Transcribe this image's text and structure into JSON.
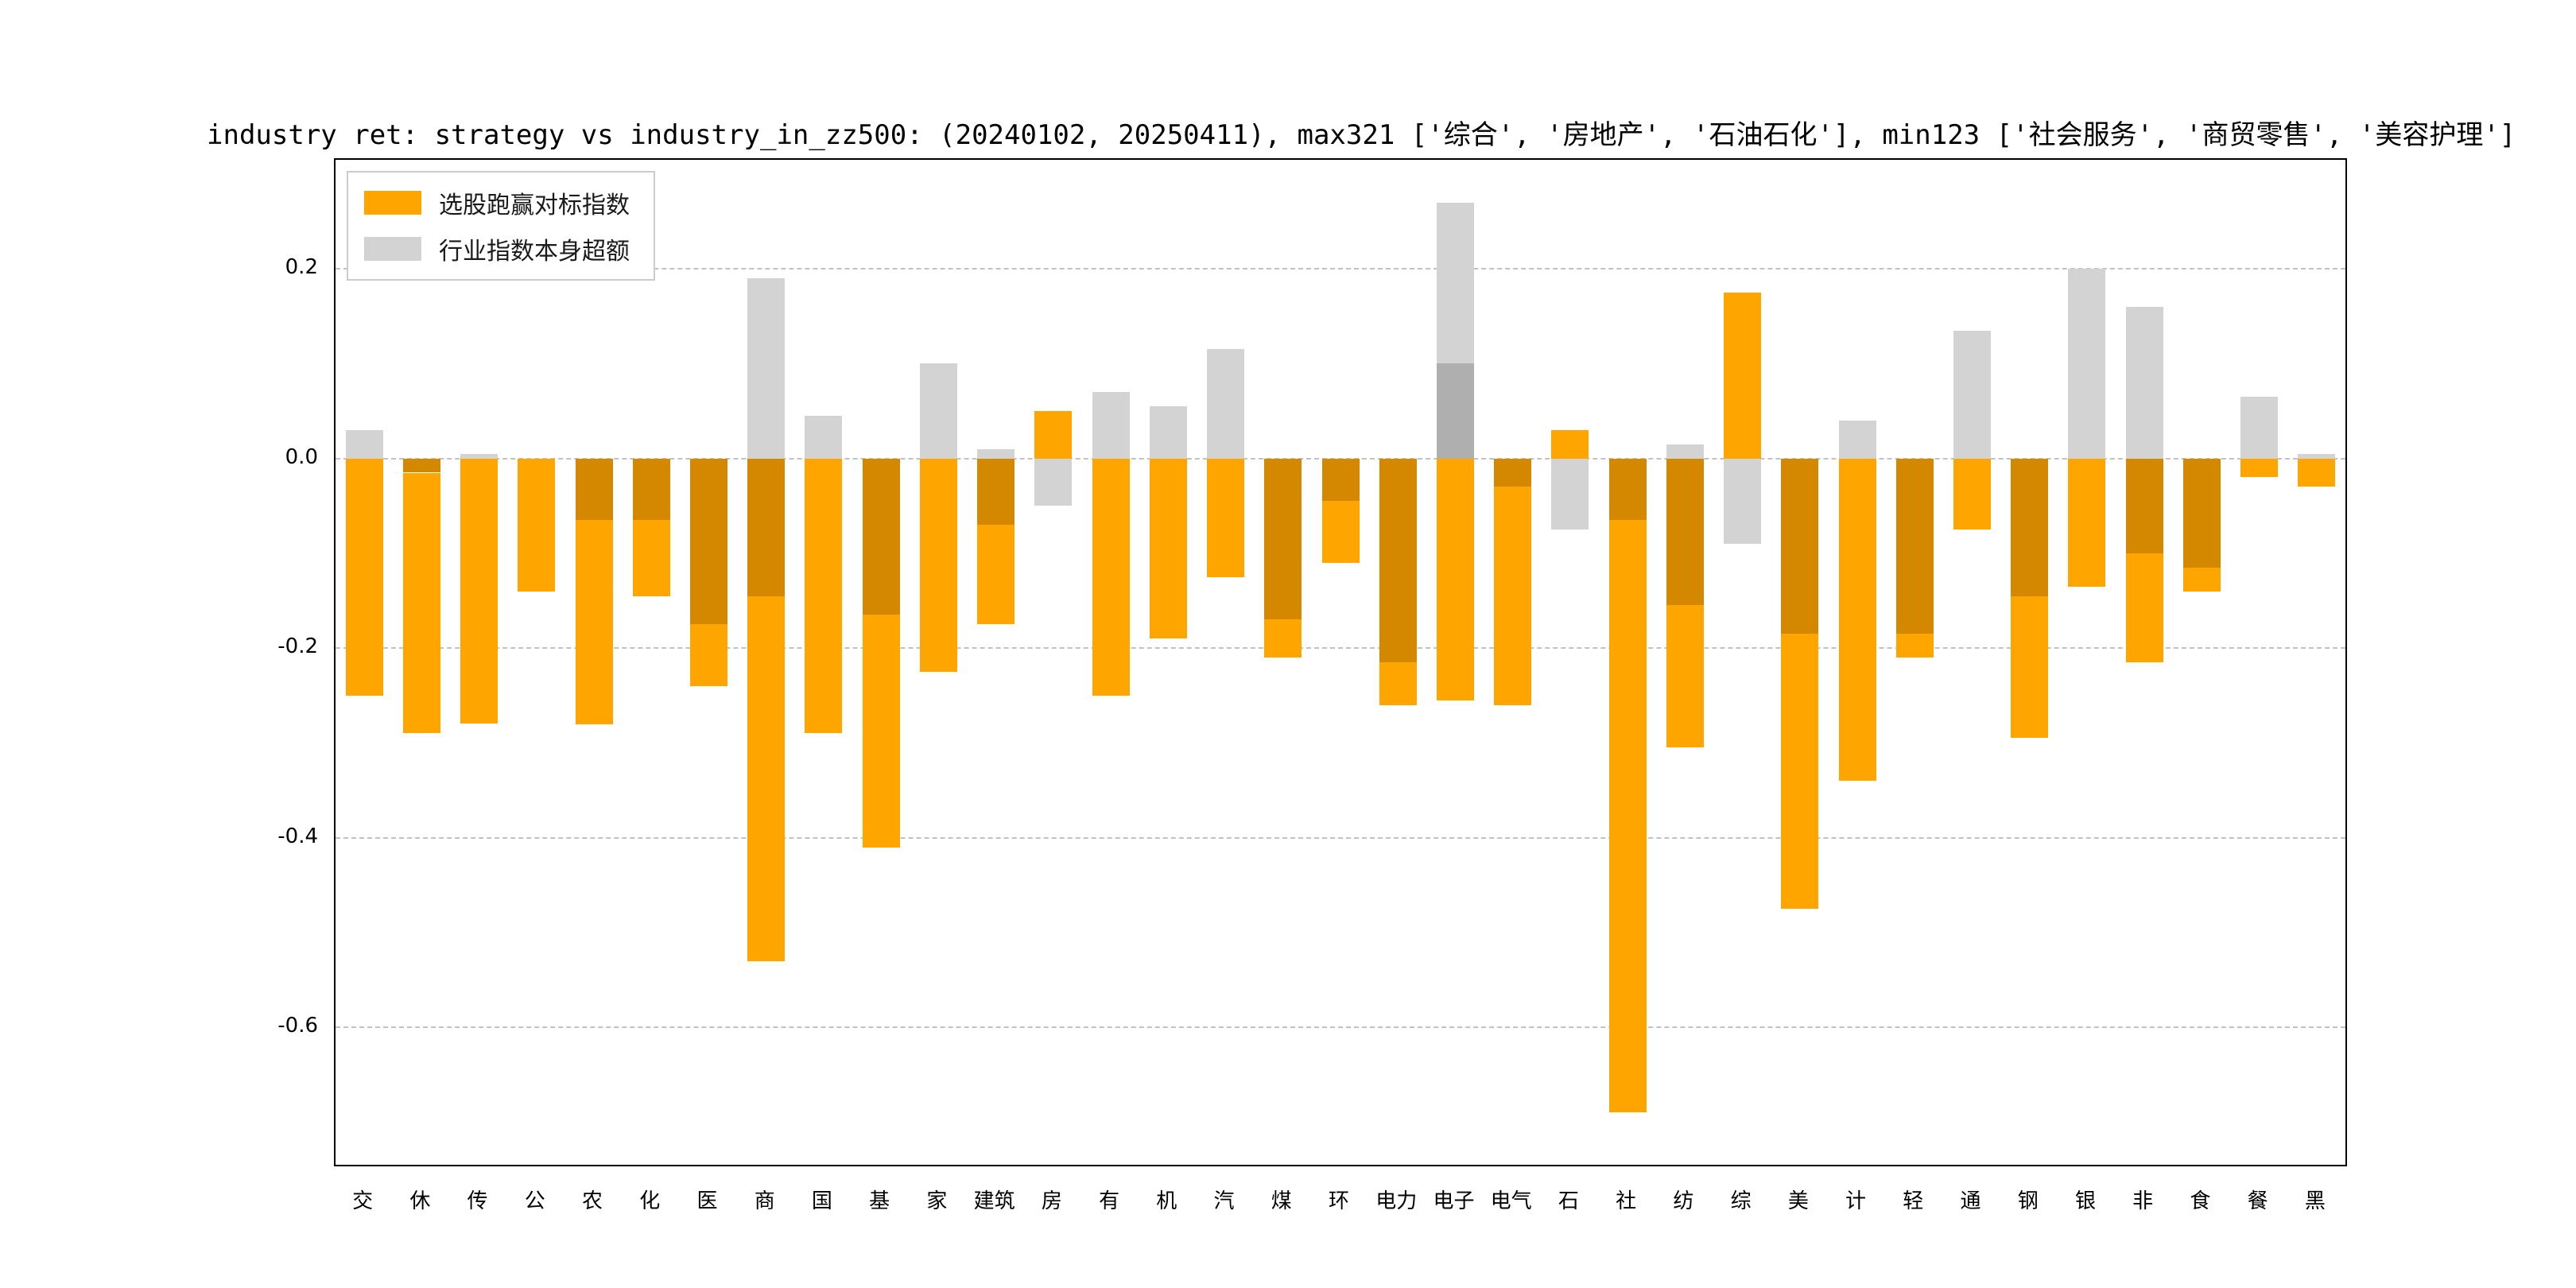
{
  "figure": {
    "title": "industry ret: strategy vs industry_in_zz500: (20240102, 20250411), max321 ['综合', '房地产', '石油石化'], min123 ['社会服务', '商贸零售', '美容护理']"
  },
  "legend": {
    "items": [
      {
        "label": "选股跑赢对标指数",
        "color": "#FFA500"
      },
      {
        "label": "行业指数本身超额",
        "color": "#D3D3D3"
      }
    ]
  },
  "chart_data": {
    "type": "bar",
    "title": "industry ret: strategy vs industry_in_zz500: (20240102, 20250411), max321 ['综合', '房地产', '石油石化'], min123 ['社会服务', '商贸零售', '美容护理']",
    "ylim": [
      -0.745,
      0.315
    ],
    "yticks": [
      {
        "label": "0.2",
        "value": 0.2
      },
      {
        "label": "0.0",
        "value": 0.0
      },
      {
        "label": "-0.2",
        "value": -0.2
      },
      {
        "label": "-0.4",
        "value": -0.4
      },
      {
        "label": "-0.6",
        "value": -0.6
      }
    ],
    "grid": {
      "horizontal": true,
      "style": "dashed"
    },
    "legend_position": "upper-left",
    "series_names": [
      "选股跑赢对标指数",
      "行业指数本身超额"
    ],
    "colors": {
      "orange": "#FFA500",
      "gray": "#D3D3D3",
      "overlap": "#D38800",
      "gray_dark": "#AFAFAF"
    },
    "bars": [
      {
        "label": "交",
        "orange": -0.25,
        "gray": [
          0,
          0.03
        ]
      },
      {
        "label": "休",
        "orange": -0.29,
        "gray": [
          -0.015,
          0
        ]
      },
      {
        "label": "传",
        "orange": -0.28,
        "gray": [
          0,
          0.005
        ]
      },
      {
        "label": "公",
        "orange": -0.14,
        "gray": [
          0,
          0
        ]
      },
      {
        "label": "农",
        "orange": -0.28,
        "gray": [
          -0.065,
          0
        ]
      },
      {
        "label": "化",
        "orange": -0.145,
        "gray": [
          -0.065,
          0
        ]
      },
      {
        "label": "医",
        "orange": -0.24,
        "gray": [
          -0.175,
          0
        ]
      },
      {
        "label": "商",
        "orange": -0.53,
        "gray": [
          -0.145,
          0.19
        ]
      },
      {
        "label": "国",
        "orange": -0.29,
        "gray": [
          0,
          0.045
        ]
      },
      {
        "label": "基",
        "orange": -0.41,
        "gray": [
          -0.165,
          0
        ]
      },
      {
        "label": "家",
        "orange": -0.225,
        "gray": [
          0,
          0.1
        ]
      },
      {
        "label": "建筑",
        "orange": -0.175,
        "gray": [
          -0.07,
          0.01
        ]
      },
      {
        "label": "房",
        "orange": 0.05,
        "gray": [
          -0.05,
          0
        ]
      },
      {
        "label": "有",
        "orange": -0.25,
        "gray": [
          0,
          0.07
        ]
      },
      {
        "label": "机",
        "orange": -0.19,
        "gray": [
          0,
          0.055
        ]
      },
      {
        "label": "汽",
        "orange": -0.125,
        "gray": [
          0,
          0.115
        ]
      },
      {
        "label": "煤",
        "orange": -0.21,
        "gray": [
          -0.17,
          0
        ]
      },
      {
        "label": "环",
        "orange": -0.11,
        "gray": [
          -0.045,
          0
        ]
      },
      {
        "label": "电力",
        "orange": -0.26,
        "gray": [
          -0.215,
          0
        ]
      },
      {
        "label": "电子",
        "orange": -0.255,
        "gray": [
          0,
          0.27
        ],
        "gray2": [
          0,
          0.1
        ]
      },
      {
        "label": "电气",
        "orange": -0.26,
        "gray": [
          -0.03,
          0
        ]
      },
      {
        "label": "石",
        "orange": 0.03,
        "gray": [
          -0.075,
          0
        ]
      },
      {
        "label": "社",
        "orange": -0.69,
        "gray": [
          -0.065,
          0
        ]
      },
      {
        "label": "纺",
        "orange": -0.305,
        "gray": [
          -0.155,
          0.015
        ]
      },
      {
        "label": "综",
        "orange": 0.175,
        "gray": [
          -0.09,
          0
        ]
      },
      {
        "label": "美",
        "orange": -0.475,
        "gray": [
          -0.185,
          0
        ]
      },
      {
        "label": "计",
        "orange": -0.34,
        "gray": [
          0,
          0.04
        ]
      },
      {
        "label": "轻",
        "orange": -0.21,
        "gray": [
          -0.185,
          0
        ]
      },
      {
        "label": "通",
        "orange": -0.075,
        "gray": [
          0,
          0.135
        ]
      },
      {
        "label": "钢",
        "orange": -0.295,
        "gray": [
          -0.145,
          0
        ]
      },
      {
        "label": "银",
        "orange": -0.135,
        "gray": [
          0,
          0.2
        ]
      },
      {
        "label": "非",
        "orange": -0.215,
        "gray": [
          -0.1,
          0.16
        ]
      },
      {
        "label": "食",
        "orange": -0.14,
        "gray": [
          -0.115,
          0
        ]
      },
      {
        "label": "餐",
        "orange": -0.02,
        "gray": [
          0,
          0.065
        ]
      },
      {
        "label": "黑",
        "orange": -0.03,
        "gray": [
          0,
          0.005
        ]
      }
    ]
  }
}
